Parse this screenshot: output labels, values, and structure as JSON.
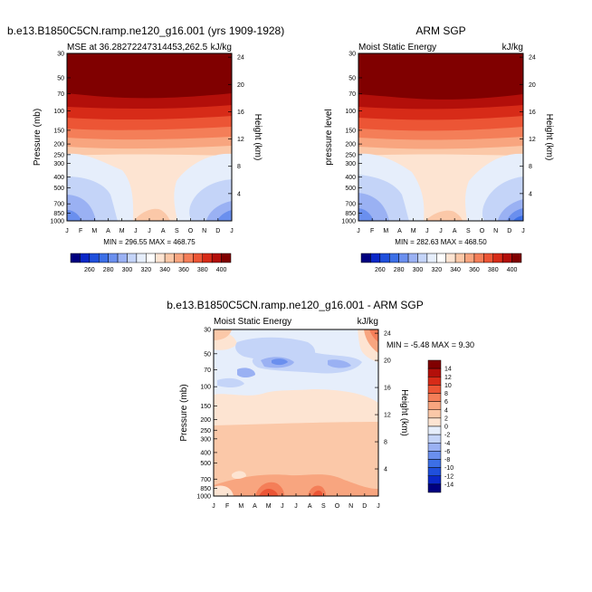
{
  "chart_data": [
    {
      "type": "contour",
      "title": "b.e13.B1850C5CN.ramp.ne120_g16.001 (yrs 1909-1928)",
      "subtitle_left": "MSE at 36.28272247314453,262.5",
      "subtitle_right": "kJ/kg",
      "ylabel": "Pressure (mb)",
      "ylabel_right": "Height (km)",
      "months": [
        "J",
        "F",
        "M",
        "A",
        "M",
        "J",
        "J",
        "A",
        "S",
        "O",
        "N",
        "D",
        "J"
      ],
      "pressure_ticks": [
        "30",
        "50",
        "70",
        "100",
        "150",
        "200",
        "250",
        "300",
        "400",
        "500",
        "700",
        "850",
        "1000"
      ],
      "height_ticks": [
        "24",
        "20",
        "16",
        "12",
        "8",
        "4"
      ],
      "stats": "MIN = 296.55 MAX = 468.75",
      "min": 296.55,
      "max": 468.75,
      "colorbar_labels": [
        "260",
        "280",
        "300",
        "320",
        "340",
        "360",
        "380",
        "400"
      ]
    },
    {
      "type": "contour",
      "title": "ARM SGP",
      "subtitle_left": "Moist Static Energy",
      "subtitle_right": "kJ/kg",
      "ylabel": "pressure level",
      "ylabel_right": "Height (km)",
      "months": [
        "J",
        "F",
        "M",
        "A",
        "M",
        "J",
        "J",
        "A",
        "S",
        "O",
        "N",
        "D",
        "J"
      ],
      "pressure_ticks": [
        "30",
        "50",
        "70",
        "100",
        "150",
        "200",
        "250",
        "300",
        "400",
        "500",
        "700",
        "850",
        "1000"
      ],
      "height_ticks": [
        "24",
        "20",
        "16",
        "12",
        "8",
        "4"
      ],
      "stats": "MIN = 282.63 MAX = 468.50",
      "min": 282.63,
      "max": 468.5,
      "colorbar_labels": [
        "260",
        "280",
        "300",
        "320",
        "340",
        "360",
        "380",
        "400"
      ]
    },
    {
      "type": "contour",
      "title": "b.e13.B1850C5CN.ramp.ne120_g16.001 - ARM SGP",
      "subtitle_left": "Moist Static Energy",
      "subtitle_right": "kJ/kg",
      "ylabel": "Pressure (mb)",
      "ylabel_right": "Height (km)",
      "months": [
        "J",
        "F",
        "M",
        "A",
        "M",
        "J",
        "J",
        "A",
        "S",
        "O",
        "N",
        "D",
        "J"
      ],
      "pressure_ticks": [
        "30",
        "50",
        "70",
        "100",
        "150",
        "200",
        "250",
        "300",
        "400",
        "500",
        "700",
        "850",
        "1000"
      ],
      "height_ticks": [
        "24",
        "20",
        "16",
        "12",
        "8",
        "4"
      ],
      "stats": "MIN =  -5.48 MAX =   9.30",
      "min": -5.48,
      "max": 9.3,
      "colorbar_labels": [
        "14",
        "12",
        "10",
        "8",
        "6",
        "4",
        "2",
        "0",
        "-2",
        "-4",
        "-6",
        "-8",
        "-10",
        "-12",
        "-14"
      ]
    }
  ],
  "colors": {
    "full_scale": [
      "#000080",
      "#0b28c8",
      "#1f4fdc",
      "#3c6fe6",
      "#6a8fee",
      "#9ab1f3",
      "#c4d4f8",
      "#e6eefb",
      "#ffffff",
      "#fde4d2",
      "#fbc8a8",
      "#f8a57f",
      "#f47e58",
      "#ec5535",
      "#d72b18",
      "#b30f0a",
      "#800000"
    ],
    "diff_scale": [
      "#800000",
      "#b30f0a",
      "#d72b18",
      "#ec5535",
      "#f47e58",
      "#f8a57f",
      "#fbc8a8",
      "#fde4d2",
      "#e6eefb",
      "#c4d4f8",
      "#9ab1f3",
      "#6a8fee",
      "#3c6fe6",
      "#1f4fdc",
      "#0b28c8",
      "#000080"
    ]
  }
}
